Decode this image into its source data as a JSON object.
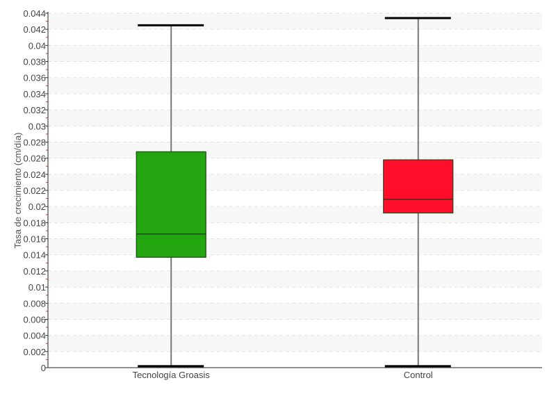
{
  "chart_data": {
    "type": "boxplot",
    "title": "",
    "xlabel": "",
    "ylabel": "Tasa de crecimiento (cm/día)",
    "ylim": [
      0,
      0.044
    ],
    "ytick_step": 0.002,
    "yticks": [
      "0",
      "0.002",
      "0.004",
      "0.006",
      "0.008",
      "0.01",
      "0.012",
      "0.014",
      "0.016",
      "0.018",
      "0.02",
      "0.022",
      "0.024",
      "0.026",
      "0.028",
      "0.03",
      "0.032",
      "0.034",
      "0.036",
      "0.038",
      "0.04",
      "0.042",
      "0.044"
    ],
    "grid": true,
    "categories": [
      "Tecnología Groasis",
      "Control"
    ],
    "boxes": [
      {
        "category": "Tecnología Groasis",
        "min": 0.0001,
        "q1": 0.0137,
        "median": 0.0166,
        "q3": 0.0268,
        "max": 0.0425,
        "color": "#22a50f"
      },
      {
        "category": "Control",
        "min": 0.0001,
        "q1": 0.0192,
        "median": 0.0209,
        "q3": 0.0258,
        "max": 0.0434,
        "color": "#ff0d2b"
      }
    ]
  }
}
